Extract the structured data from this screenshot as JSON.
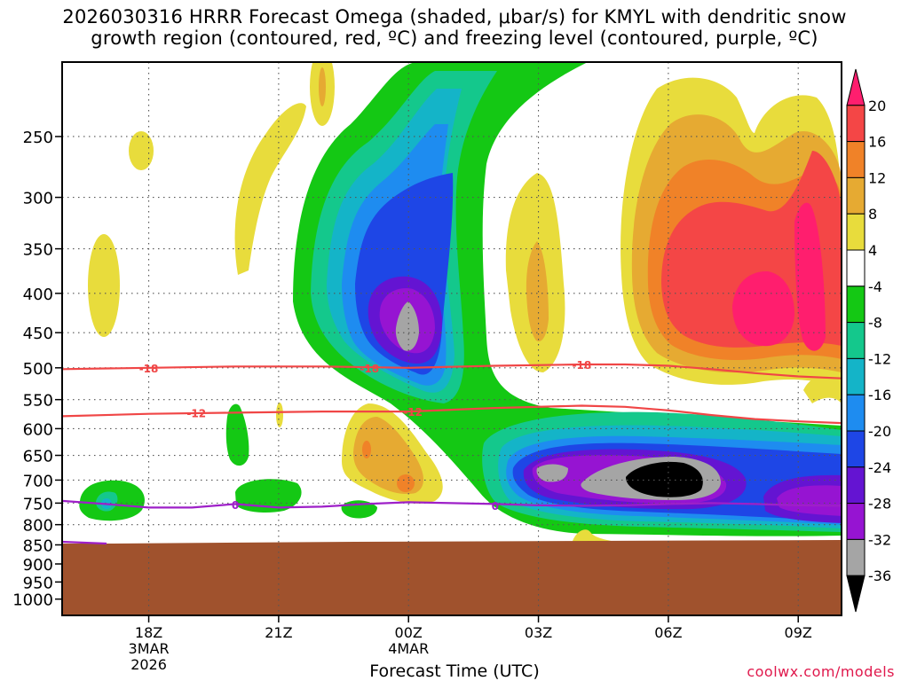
{
  "title": {
    "line1": "2026030316 HRRR Forecast Omega (shaded, μbar/s) for KMYL with dendritic snow",
    "line2": "growth region (contoured, red, ºC) and freezing level (contoured, purple, ºC)"
  },
  "x_axis_label": "Forecast Time (UTC)",
  "credit": "coolwx.com/models",
  "chart_data": {
    "type": "heatmap",
    "title": "2026030316 HRRR Forecast Omega (shaded, μbar/s) for KMYL with dendritic snow growth region (contoured, red, ºC) and freezing level (contoured, purple, ºC)",
    "xlabel": "Forecast Time (UTC)",
    "ylabel": "",
    "x_ticks": [
      {
        "hour": 18,
        "label": "18Z",
        "sub": [
          "3MAR",
          "2026"
        ]
      },
      {
        "hour": 21,
        "label": "21Z",
        "sub": []
      },
      {
        "hour": 24,
        "label": "00Z",
        "sub": [
          "4MAR"
        ]
      },
      {
        "hour": 27,
        "label": "03Z",
        "sub": []
      },
      {
        "hour": 30,
        "label": "06Z",
        "sub": []
      },
      {
        "hour": 33,
        "label": "09Z",
        "sub": []
      }
    ],
    "xlim": [
      16,
      34
    ],
    "y_ticks": [
      250,
      300,
      350,
      400,
      450,
      500,
      550,
      600,
      650,
      700,
      750,
      800,
      850,
      900,
      950,
      1000
    ],
    "ylim": [
      1050,
      200
    ],
    "y_scale": "log-pressure",
    "grid": true,
    "colorbar": {
      "labels": [
        "20",
        "16",
        "12",
        "8",
        "4",
        "-4",
        "-8",
        "-12",
        "-16",
        "-20",
        "-24",
        "-28",
        "-32",
        "-36"
      ],
      "colors": [
        "#ff1e6e",
        "#f44646",
        "#f08228",
        "#e6aa32",
        "#e8dc3c",
        "#ffffff",
        "#14c814",
        "#14c88c",
        "#14b4c8",
        "#1e8cf0",
        "#1e46e6",
        "#6414d2",
        "#9614d2",
        "#a5a5a5",
        "#000000"
      ]
    },
    "omega_field_peaks": [
      {
        "name": "upper-level ascent",
        "hour": 23.8,
        "pressure": 450,
        "value": -32
      },
      {
        "name": "mid-level ascent",
        "hour": 30.0,
        "pressure": 700,
        "value": -36
      },
      {
        "name": "upper-level descent",
        "hour": 31.8,
        "pressure": 400,
        "value": 20
      }
    ],
    "contours": [
      {
        "name": "dendritic growth",
        "level": "-18",
        "color": "#f04646",
        "x": [
          16,
          18,
          20,
          22,
          24,
          26,
          28,
          29,
          30,
          31,
          32,
          33,
          34
        ],
        "y": [
          502,
          500,
          498,
          498,
          500,
          497,
          495,
          495,
          497,
          502,
          508,
          513,
          516
        ]
      },
      {
        "name": "dendritic growth",
        "level": "-12",
        "color": "#f04646",
        "x": [
          16,
          18,
          20,
          22,
          24,
          26,
          28,
          29,
          30,
          31,
          32,
          33,
          34
        ],
        "y": [
          578,
          574,
          572,
          570,
          570,
          564,
          560,
          562,
          568,
          576,
          583,
          587,
          590
        ]
      },
      {
        "name": "freezing level",
        "level": "0",
        "color": "#9e20c8",
        "x": [
          16,
          17,
          18,
          19,
          20,
          21,
          22,
          23,
          24,
          25,
          26,
          27,
          28,
          29,
          30,
          31,
          32,
          33,
          34
        ],
        "y": [
          745,
          752,
          760,
          760,
          752,
          760,
          758,
          752,
          748,
          750,
          752,
          755,
          756,
          755,
          752,
          750,
          752,
          755,
          756
        ]
      }
    ],
    "contour_labels": [
      {
        "text": "-18",
        "hour": 18.0,
        "pressure": 500
      },
      {
        "text": "-18",
        "hour": 23.1,
        "pressure": 500
      },
      {
        "text": "-18",
        "hour": 28.0,
        "pressure": 495
      },
      {
        "text": "-12",
        "hour": 19.1,
        "pressure": 572
      },
      {
        "text": "-12",
        "hour": 24.1,
        "pressure": 570
      },
      {
        "text": "0",
        "hour": 20.0,
        "pressure": 753
      },
      {
        "text": "0",
        "hour": 26.0,
        "pressure": 755
      }
    ],
    "terrain_color": "#a0522d"
  }
}
